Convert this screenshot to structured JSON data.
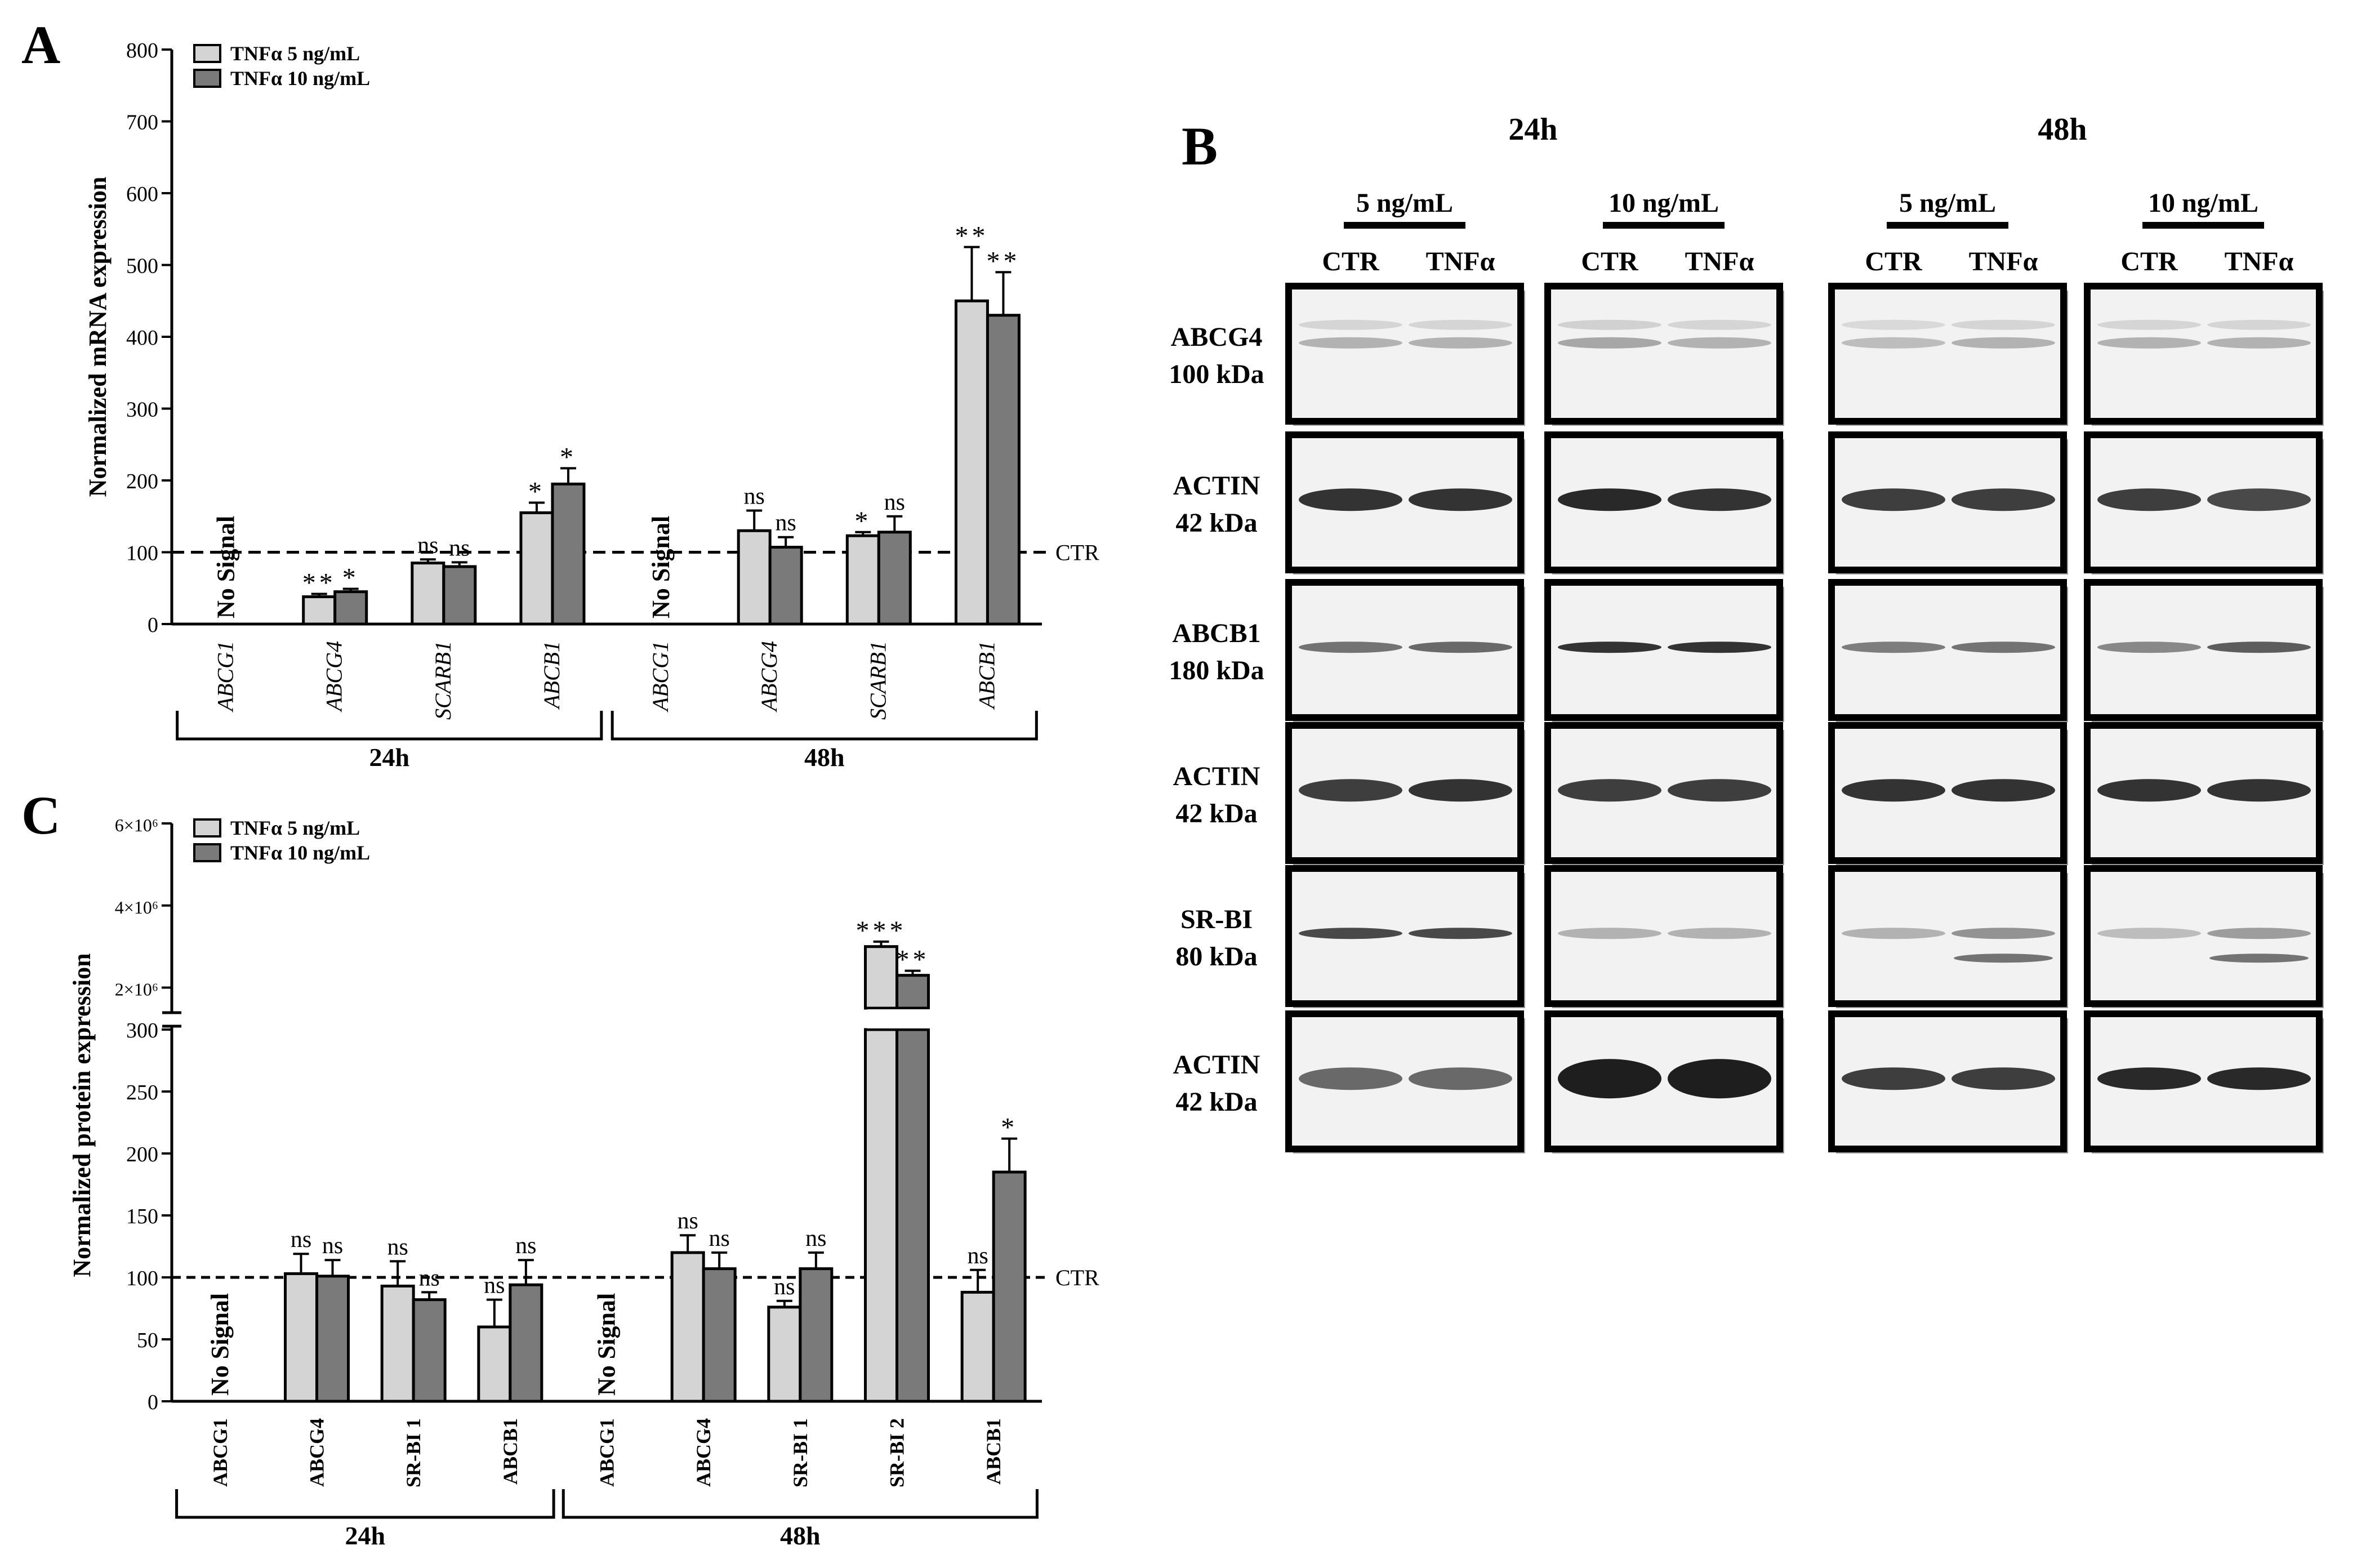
{
  "panels": {
    "A": "A",
    "B": "B",
    "C": "C"
  },
  "colors": {
    "light_bar": "#d4d4d4",
    "dark_bar": "#7a7a7a",
    "stroke": "#000000",
    "blot_bg": "#f2f2f2",
    "band": "#1e1e1e"
  },
  "ctr_label": "CTR",
  "no_signal": "No Signal",
  "chart_data": [
    {
      "id": "A",
      "type": "bar",
      "ylabel": "Normalized mRNA expression",
      "ylim": [
        0,
        800
      ],
      "yticks": [
        0,
        100,
        200,
        300,
        400,
        500,
        600,
        700,
        800
      ],
      "reference_line": 100,
      "legend": [
        "TNFα 5 ng/mL",
        "TNFα 10 ng/mL"
      ],
      "categories": [
        "ABCG1",
        "ABCG4",
        "SCARB1",
        "ABCB1",
        "ABCG1",
        "ABCG4",
        "SCARB1",
        "ABCB1"
      ],
      "groups": [
        {
          "label": "24h",
          "from": 0,
          "to": 3
        },
        {
          "label": "48h",
          "from": 4,
          "to": 7
        }
      ],
      "series": [
        {
          "name": "TNFα 5 ng/mL",
          "values": [
            null,
            38,
            85,
            155,
            null,
            130,
            123,
            450
          ],
          "errors": [
            null,
            4,
            5,
            14,
            null,
            28,
            5,
            75
          ],
          "labels": [
            "",
            "**",
            "ns",
            "*",
            "",
            "ns",
            "*",
            "**"
          ]
        },
        {
          "name": "TNFα 10 ng/mL",
          "values": [
            null,
            45,
            80,
            195,
            null,
            107,
            128,
            430
          ],
          "errors": [
            null,
            4,
            6,
            22,
            null,
            14,
            22,
            60
          ],
          "labels": [
            "",
            "*",
            "ns",
            "*",
            "",
            "ns",
            "ns",
            "**"
          ]
        }
      ],
      "no_signal_at": [
        0,
        4
      ]
    },
    {
      "id": "C",
      "type": "bar",
      "ylabel": "Normalized protein expression",
      "ylim_lower": [
        0,
        300
      ],
      "yticks_lower": [
        0,
        50,
        100,
        150,
        200,
        250,
        300
      ],
      "yticks_upper": [
        "2×10⁶",
        "4×10⁶",
        "6×10⁶"
      ],
      "upper_values": [
        2000000,
        4000000,
        6000000
      ],
      "reference_line": 100,
      "legend": [
        "TNFα 5 ng/mL",
        "TNFα 10 ng/mL"
      ],
      "categories": [
        "ABCG1",
        "ABCG4",
        "SR-BI 1",
        "ABCB1",
        "ABCG1",
        "ABCG4",
        "SR-BI 1",
        "SR-BI 2",
        "ABCB1"
      ],
      "groups": [
        {
          "label": "24h",
          "from": 0,
          "to": 3
        },
        {
          "label": "48h",
          "from": 4,
          "to": 8
        }
      ],
      "series": [
        {
          "name": "TNFα 5 ng/mL",
          "values": [
            null,
            103,
            93,
            60,
            null,
            120,
            76,
            3000000,
            88
          ],
          "errors": [
            null,
            16,
            20,
            22,
            null,
            14,
            5,
            120000,
            18
          ],
          "labels": [
            "",
            "ns",
            "ns",
            "ns",
            "",
            "ns",
            "ns",
            "***",
            "ns"
          ]
        },
        {
          "name": "TNFα 10 ng/mL",
          "values": [
            null,
            101,
            82,
            94,
            null,
            107,
            107,
            2300000,
            185
          ],
          "errors": [
            null,
            13,
            6,
            20,
            null,
            13,
            13,
            110000,
            27
          ],
          "labels": [
            "",
            "ns",
            "ns",
            "ns",
            "",
            "ns",
            "ns",
            "**",
            "*"
          ]
        }
      ],
      "no_signal_at": [
        0,
        4
      ]
    }
  ],
  "blot": {
    "times": [
      "24h",
      "48h"
    ],
    "concentrations": [
      "5 ng/mL",
      "10 ng/mL",
      "5 ng/mL",
      "10 ng/mL"
    ],
    "lanes": [
      "CTR",
      "TNFα"
    ],
    "rows": [
      {
        "name": "ABCG4",
        "size": "100 kDa",
        "intensity": [
          0.3,
          0.3,
          0.35,
          0.3,
          0.25,
          0.3,
          0.3,
          0.3
        ]
      },
      {
        "name": "ACTIN",
        "size": "42 kDa",
        "intensity": [
          0.9,
          0.9,
          0.95,
          0.9,
          0.85,
          0.85,
          0.85,
          0.8
        ]
      },
      {
        "name": "ABCB1",
        "size": "180 kDa",
        "intensity": [
          0.6,
          0.65,
          0.9,
          0.9,
          0.55,
          0.6,
          0.5,
          0.7
        ]
      },
      {
        "name": "ACTIN",
        "size": "42 kDa",
        "intensity": [
          0.85,
          0.9,
          0.85,
          0.85,
          0.9,
          0.9,
          0.9,
          0.9
        ]
      },
      {
        "name": "SR-BI",
        "size": "80 kDa",
        "intensity": [
          0.8,
          0.8,
          0.3,
          0.3,
          0.3,
          0.45,
          0.25,
          0.4
        ]
      },
      {
        "name": "ACTIN",
        "size": "42 kDa",
        "intensity": [
          0.65,
          0.65,
          1.0,
          1.0,
          0.85,
          0.85,
          0.95,
          0.95
        ]
      }
    ]
  }
}
